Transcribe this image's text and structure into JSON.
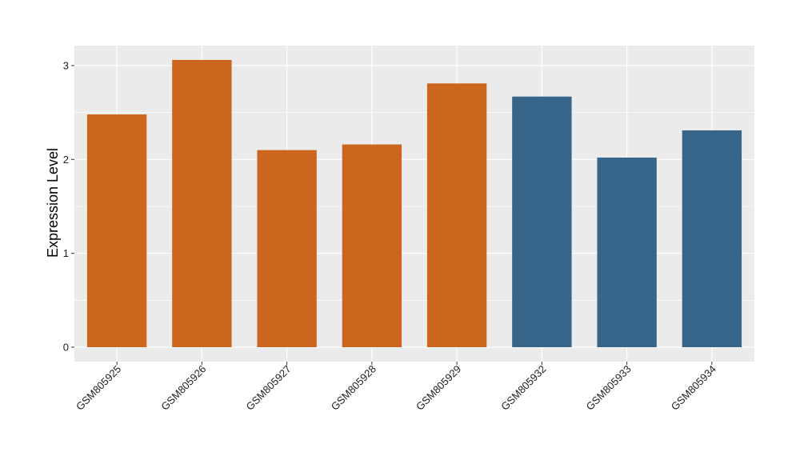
{
  "chart_data": {
    "type": "bar",
    "title": "",
    "xlabel": "",
    "ylabel": "Expression Level",
    "categories": [
      "GSM805925",
      "GSM805926",
      "GSM805927",
      "GSM805928",
      "GSM805929",
      "GSM805932",
      "GSM805933",
      "GSM805934"
    ],
    "values": [
      2.48,
      3.06,
      2.1,
      2.16,
      2.81,
      2.67,
      2.02,
      2.31
    ],
    "bar_colors": [
      "#CC661E",
      "#CC661E",
      "#CC661E",
      "#CC661E",
      "#CC661E",
      "#37658A",
      "#37658A",
      "#37658A"
    ],
    "ylim": [
      -0.15,
      3.2
    ],
    "yticks": [
      0,
      1,
      2,
      3
    ],
    "grid": true,
    "panel_background": "#EBEBEB",
    "grid_color": "#FFFFFF",
    "legend": "none"
  }
}
